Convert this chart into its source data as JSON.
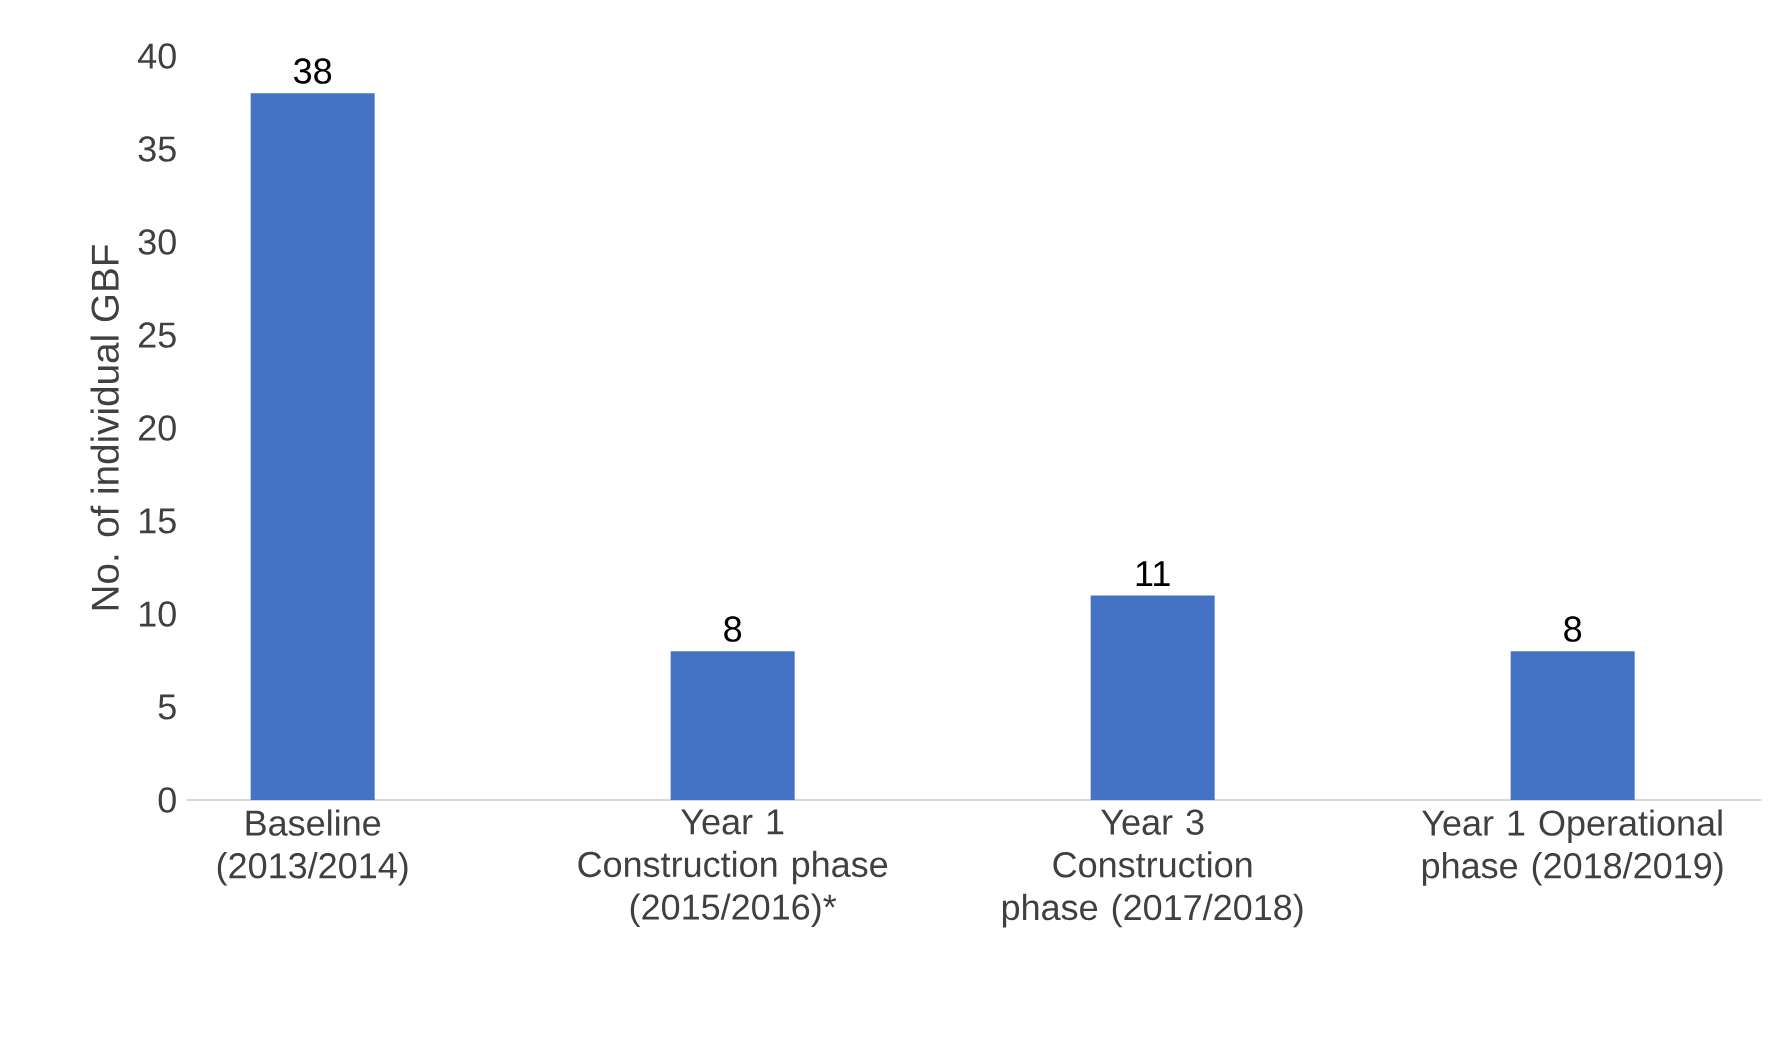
{
  "chart_data": {
    "type": "bar",
    "ylabel": "No. of individual GBF",
    "categories": [
      "Baseline (2013/2014)",
      "Year 1 Construction phase (2015/2016)*",
      "Year 3 Construction phase (2017/2018)",
      "Year 1 Operational phase (2018/2019)"
    ],
    "values": [
      38,
      8,
      11,
      8
    ],
    "color": "#4472c4",
    "ylim": [
      0,
      40
    ],
    "yticks": [
      0,
      5,
      10,
      15,
      20,
      25,
      30,
      35,
      40
    ],
    "grid": false,
    "data_labels": true
  }
}
